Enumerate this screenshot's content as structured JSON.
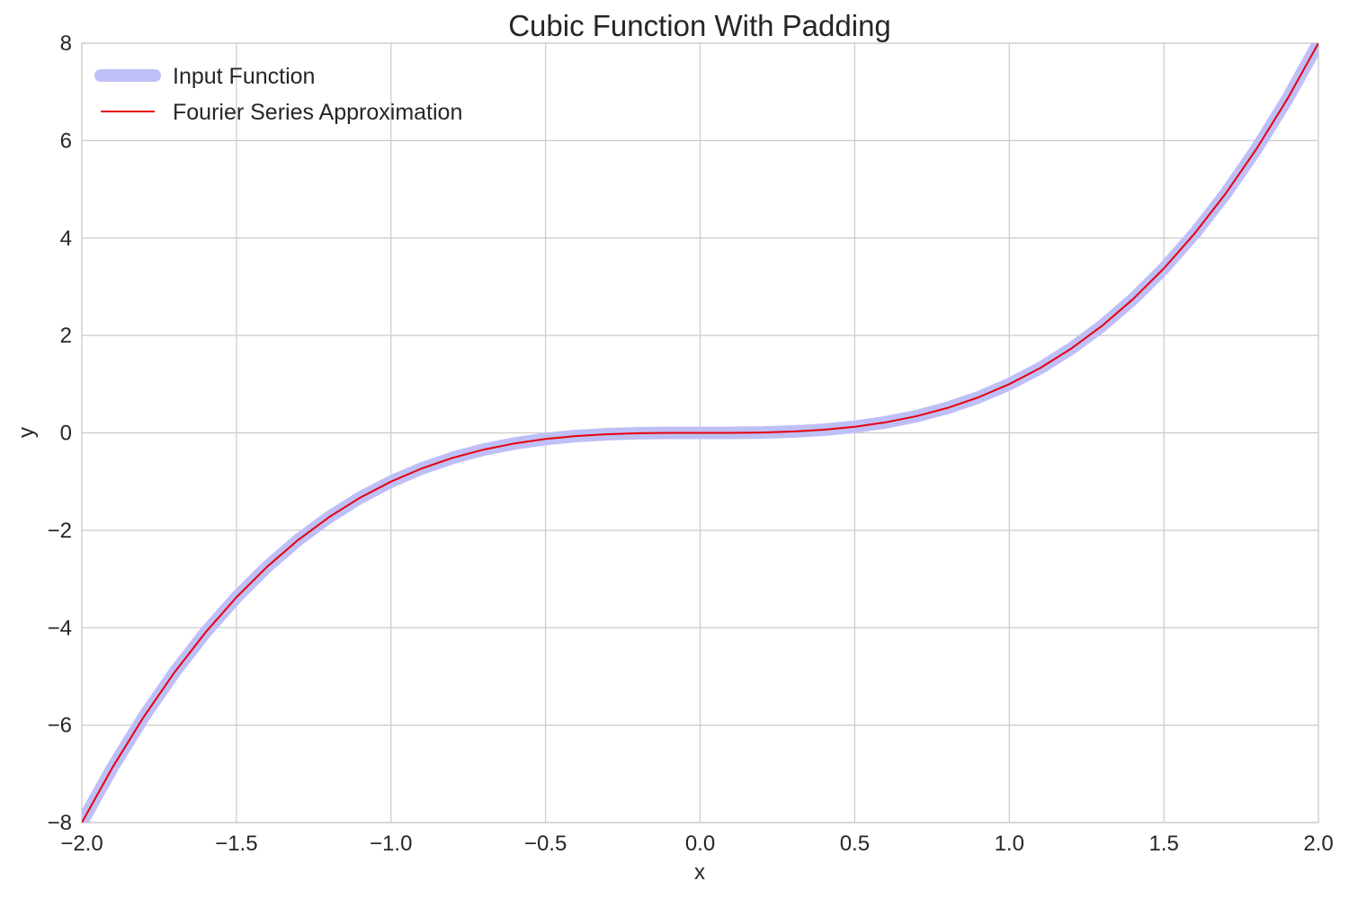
{
  "chart_data": {
    "type": "line",
    "title": "Cubic Function With Padding",
    "xlabel": "x",
    "ylabel": "y",
    "xlim": [
      -2.0,
      2.0
    ],
    "ylim": [
      -8,
      8
    ],
    "xticks": [
      -2.0,
      -1.5,
      -1.0,
      -0.5,
      0.0,
      0.5,
      1.0,
      1.5,
      2.0
    ],
    "xtick_labels": [
      "−2.0",
      "−1.5",
      "−1.0",
      "−0.5",
      "0.0",
      "0.5",
      "1.0",
      "1.5",
      "2.0"
    ],
    "yticks": [
      -8,
      -6,
      -4,
      -2,
      0,
      2,
      4,
      6,
      8
    ],
    "ytick_labels": [
      "−8",
      "−6",
      "−4",
      "−2",
      "0",
      "2",
      "4",
      "6",
      "8"
    ],
    "grid": true,
    "legend_position": "top-left",
    "x": [
      -2.0,
      -1.9,
      -1.8,
      -1.7,
      -1.6,
      -1.5,
      -1.4,
      -1.3,
      -1.2,
      -1.1,
      -1.0,
      -0.9,
      -0.8,
      -0.7,
      -0.6,
      -0.5,
      -0.4,
      -0.3,
      -0.2,
      -0.1,
      0.0,
      0.1,
      0.2,
      0.3,
      0.4,
      0.5,
      0.6,
      0.7,
      0.8,
      0.9,
      1.0,
      1.1,
      1.2,
      1.3,
      1.4,
      1.5,
      1.6,
      1.7,
      1.8,
      1.9,
      2.0
    ],
    "series": [
      {
        "name": "Input Function",
        "color": "#bfbff7",
        "style": "thick",
        "values": [
          -8.0,
          -6.859,
          -5.832,
          -4.913,
          -4.096,
          -3.375,
          -2.744,
          -2.197,
          -1.728,
          -1.331,
          -1.0,
          -0.729,
          -0.512,
          -0.343,
          -0.216,
          -0.125,
          -0.064,
          -0.027,
          -0.008,
          -0.001,
          0.0,
          0.001,
          0.008,
          0.027,
          0.064,
          0.125,
          0.216,
          0.343,
          0.512,
          0.729,
          1.0,
          1.331,
          1.728,
          2.197,
          2.744,
          3.375,
          4.096,
          4.913,
          5.832,
          6.859,
          8.0
        ]
      },
      {
        "name": "Fourier Series Approximation",
        "color": "#e8000b",
        "style": "thin",
        "values": [
          -8.0,
          -6.859,
          -5.832,
          -4.913,
          -4.096,
          -3.375,
          -2.744,
          -2.197,
          -1.728,
          -1.331,
          -1.0,
          -0.729,
          -0.512,
          -0.343,
          -0.216,
          -0.125,
          -0.064,
          -0.027,
          -0.008,
          -0.001,
          0.0,
          0.001,
          0.008,
          0.027,
          0.064,
          0.125,
          0.216,
          0.343,
          0.512,
          0.729,
          1.0,
          1.331,
          1.728,
          2.197,
          2.744,
          3.375,
          4.096,
          4.913,
          5.832,
          6.859,
          8.0
        ]
      }
    ]
  }
}
